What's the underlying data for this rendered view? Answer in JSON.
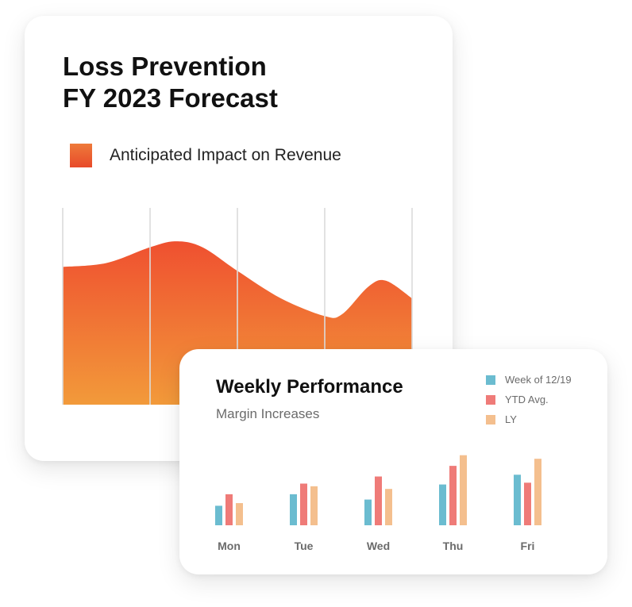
{
  "colors": {
    "area_top": "#ef5030",
    "area_bottom": "#f29a3a",
    "gridline": "#dcdcdc",
    "week": "#6bbcd0",
    "ytd": "#ef7b78",
    "ly": "#f4bf8e"
  },
  "forecast_card": {
    "title_line1": "Loss Prevention",
    "title_line2": "FY 2023 Forecast",
    "legend_label": "Anticipated Impact on Revenue"
  },
  "performance_card": {
    "title": "Weekly Performance",
    "subtitle": "Margin Increases"
  },
  "chart_data": [
    {
      "type": "area",
      "title": "Loss Prevention FY 2023 Forecast",
      "series": [
        {
          "name": "Anticipated Impact on Revenue",
          "values": [
            70,
            72,
            80,
            83,
            80,
            68,
            54,
            45,
            46,
            60,
            63,
            54
          ]
        }
      ],
      "x": [
        0,
        0.5,
        1,
        1.3,
        1.6,
        2,
        2.5,
        3,
        3.2,
        3.5,
        3.7,
        4
      ],
      "ylim": [
        0,
        100
      ],
      "grid": true,
      "legend": "top-left"
    },
    {
      "type": "bar",
      "title": "Weekly Performance",
      "subtitle": "Margin Increases",
      "categories": [
        "Mon",
        "Tue",
        "Wed",
        "Thu",
        "Fri"
      ],
      "series": [
        {
          "name": "Week of 12/19",
          "values": [
            22,
            35,
            29,
            46,
            57
          ]
        },
        {
          "name": "YTD Avg.",
          "values": [
            35,
            47,
            55,
            67,
            48
          ]
        },
        {
          "name": "LY",
          "values": [
            25,
            44,
            41,
            79,
            75
          ]
        }
      ],
      "ylim": [
        0,
        85
      ],
      "grid": false,
      "legend": "top-right"
    }
  ]
}
